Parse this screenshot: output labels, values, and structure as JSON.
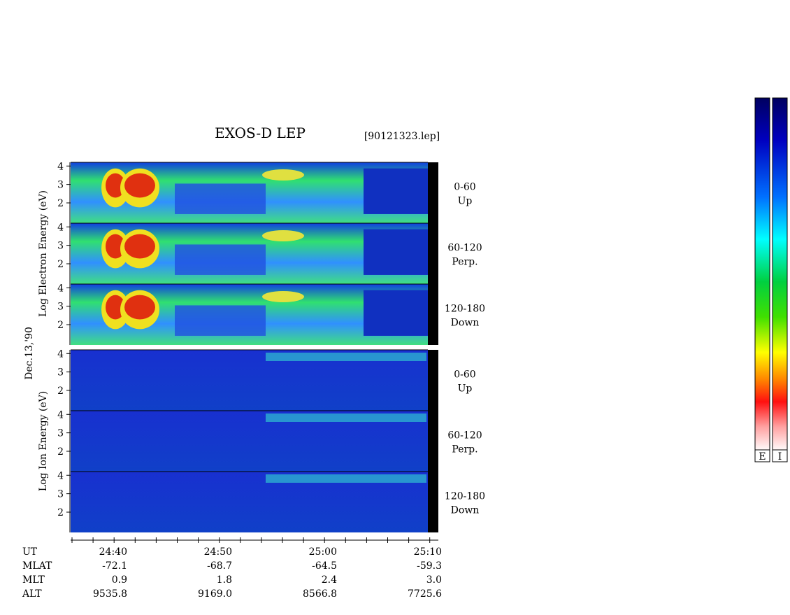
{
  "title": "EXOS-D LEP",
  "file": "[90121323.lep]",
  "date": "Dec.13,'90",
  "groups": [
    {
      "ylabel": "Log   Electron   Energy (eV)",
      "kind": "electron",
      "panels": [
        {
          "angle": "0-60",
          "direction": "Up",
          "ylim": [
            0.9,
            4.2
          ],
          "yticks": [
            2,
            3,
            4
          ]
        },
        {
          "angle": "60-120",
          "direction": "Perp.",
          "ylim": [
            0.9,
            4.2
          ],
          "yticks": [
            2,
            3,
            4
          ]
        },
        {
          "angle": "120-180",
          "direction": "Down",
          "ylim": [
            0.9,
            4.2
          ],
          "yticks": [
            2,
            3,
            4
          ]
        }
      ]
    },
    {
      "ylabel": "Log   Ion   Energy (eV)",
      "kind": "ion",
      "panels": [
        {
          "angle": "0-60",
          "direction": "Up",
          "ylim": [
            0.9,
            4.2
          ],
          "yticks": [
            2,
            3,
            4
          ]
        },
        {
          "angle": "60-120",
          "direction": "Perp.",
          "ylim": [
            0.9,
            4.2
          ],
          "yticks": [
            2,
            3,
            4
          ]
        },
        {
          "angle": "120-180",
          "direction": "Down",
          "ylim": [
            0.9,
            4.2
          ],
          "yticks": [
            2,
            3,
            4
          ]
        }
      ]
    }
  ],
  "time_axis": {
    "rows": [
      [
        "UT",
        "24:40",
        "24:50",
        "25:00",
        "25:10"
      ],
      [
        "MLAT",
        "-72.1",
        "-68.7",
        "-64.5",
        "-59.3"
      ],
      [
        "MLT",
        "0.9",
        "1.8",
        "2.4",
        "3.0"
      ],
      [
        "ALT",
        "9535.8",
        "9169.0",
        "8566.8",
        "7725.6"
      ]
    ]
  },
  "colorbars": [
    "E",
    "I"
  ]
}
